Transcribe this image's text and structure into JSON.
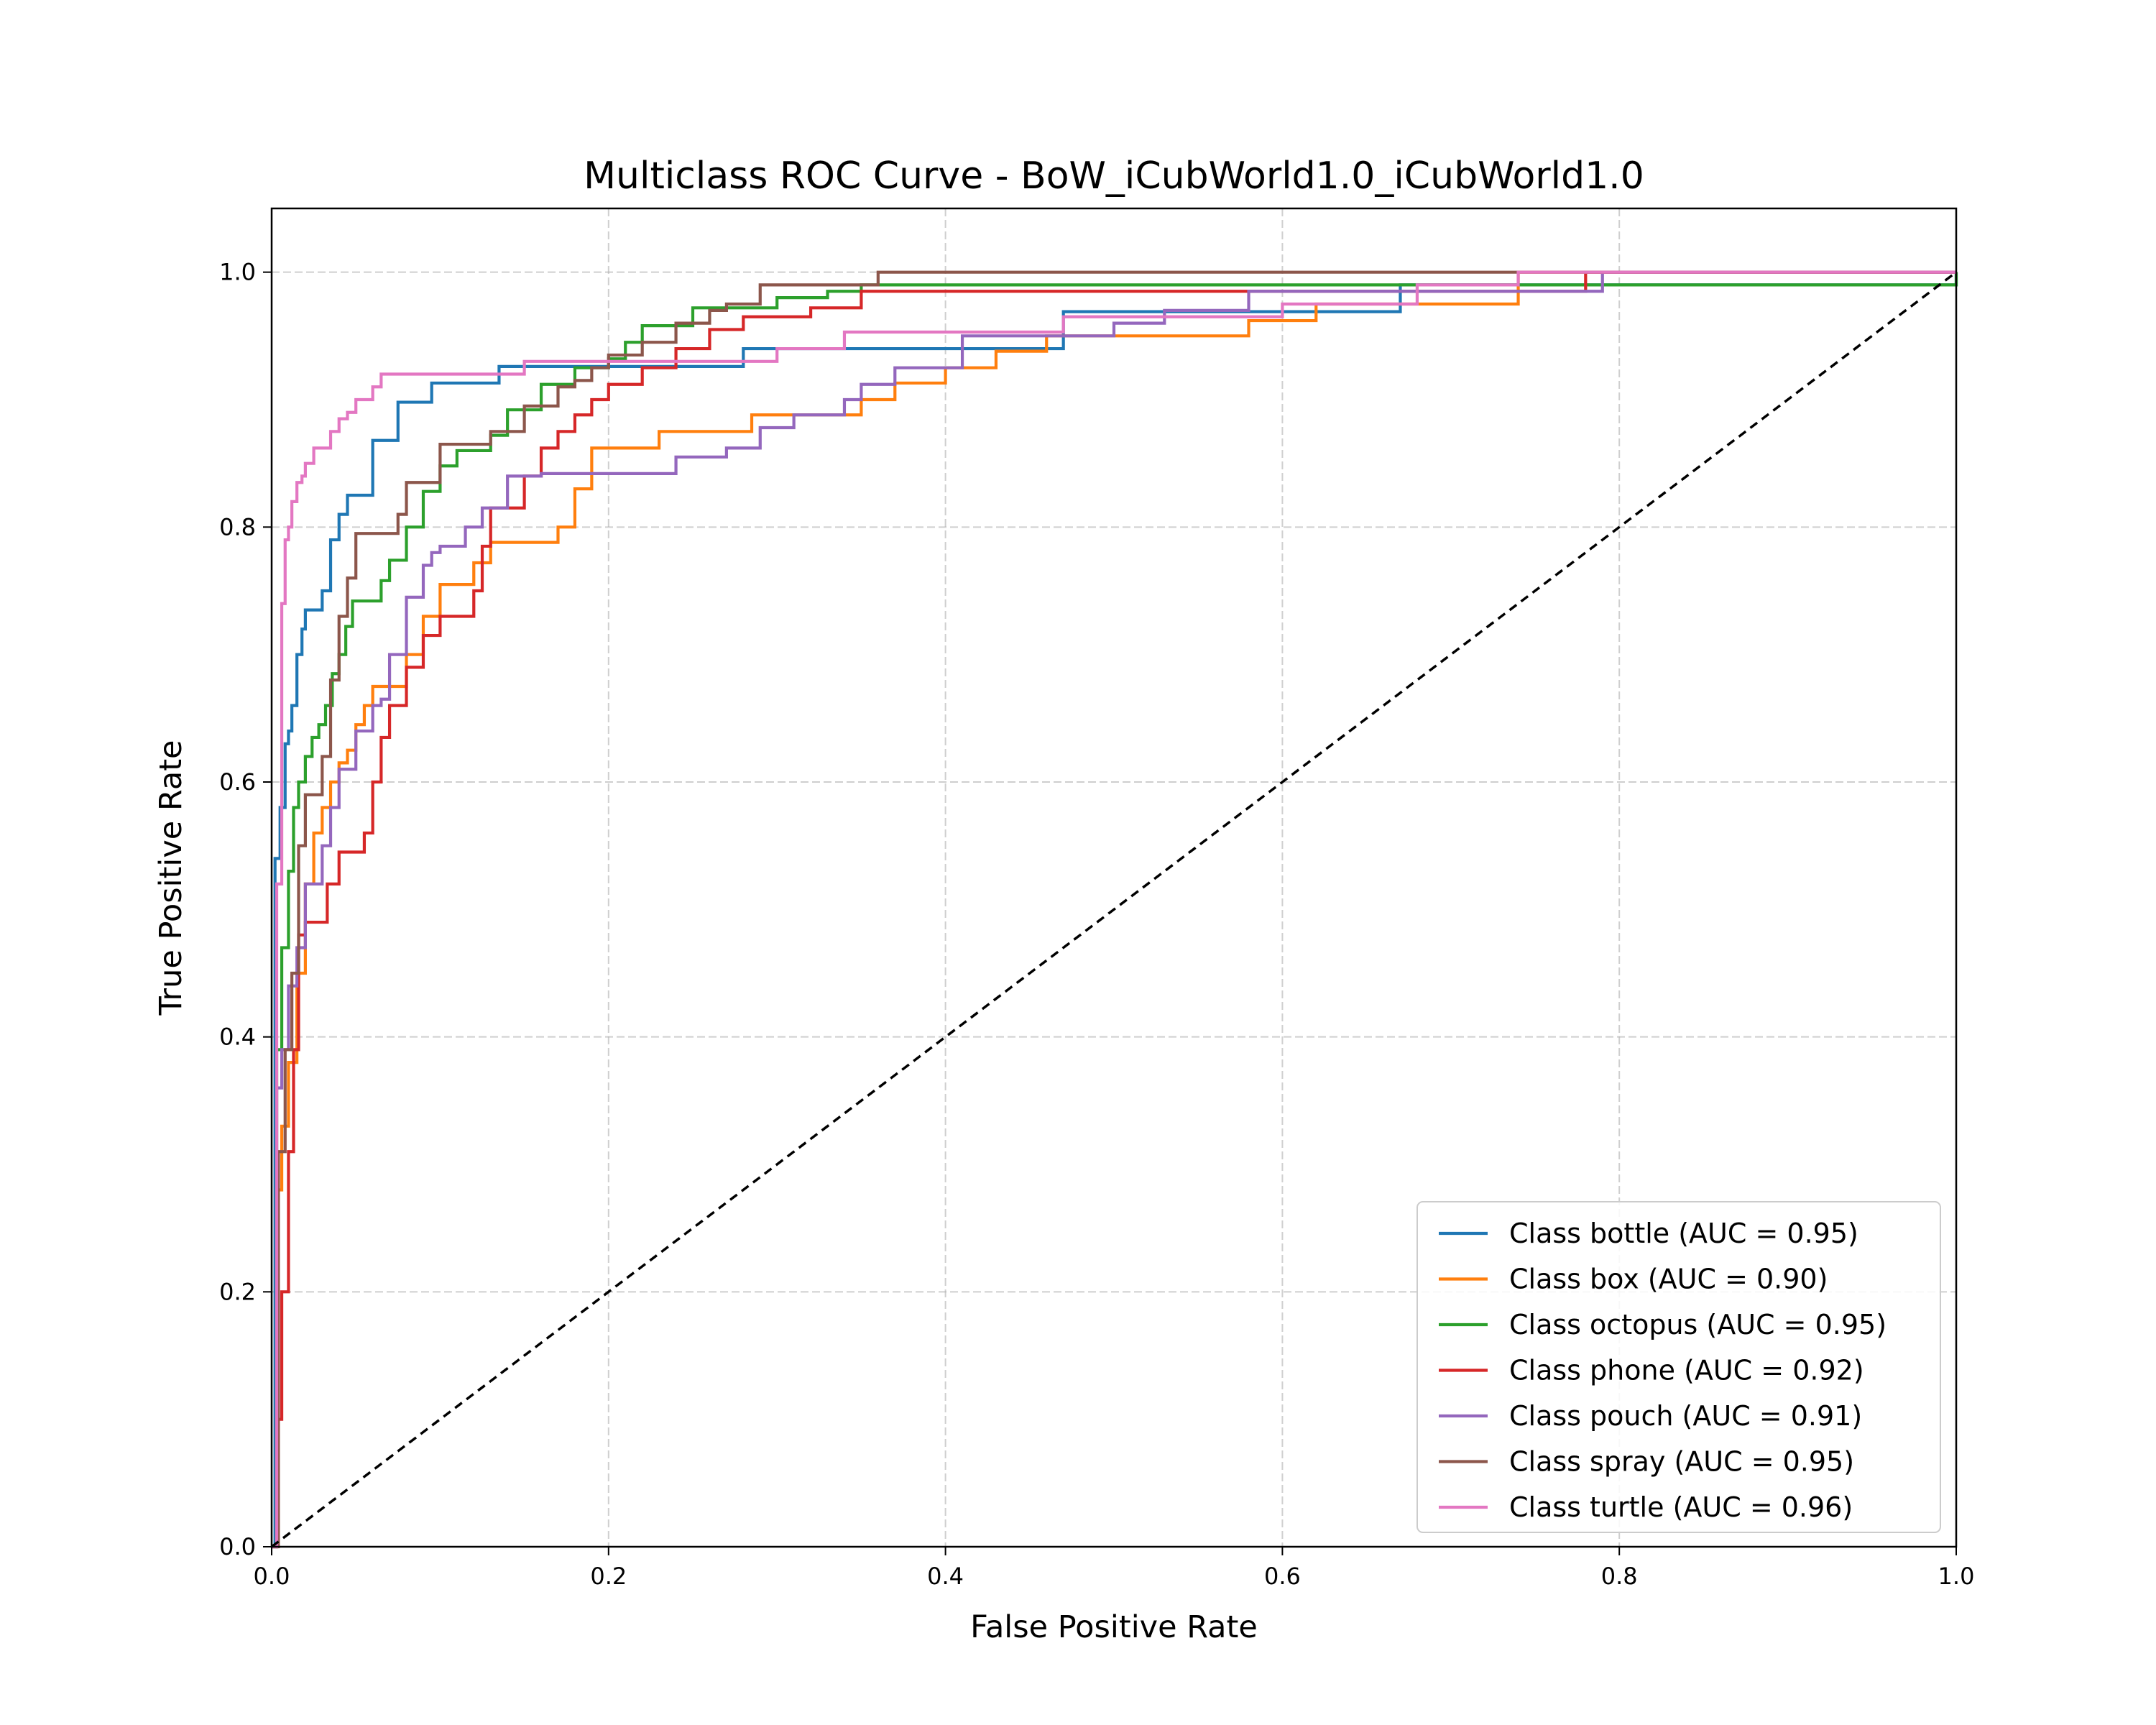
{
  "chart_data": {
    "type": "line",
    "title": "Multiclass ROC Curve - BoW_iCubWorld1.0_iCubWorld1.0",
    "xlabel": "False Positive Rate",
    "ylabel": "True Positive Rate",
    "xlim": [
      0.0,
      1.0
    ],
    "ylim": [
      0.0,
      1.05
    ],
    "xticks": [
      "0.0",
      "0.2",
      "0.4",
      "0.6",
      "0.8",
      "1.0"
    ],
    "yticks": [
      "0.0",
      "0.2",
      "0.4",
      "0.6",
      "0.8",
      "1.0"
    ],
    "grid": true,
    "legend_position": "lower-right",
    "diagonal": {
      "x": [
        0,
        1
      ],
      "y": [
        0,
        1
      ],
      "color": "#000000",
      "style": "dashed"
    },
    "series": [
      {
        "name": "Class bottle (AUC = 0.95)",
        "color": "#1f77b4",
        "x": [
          0,
          0.002,
          0.005,
          0.008,
          0.01,
          0.012,
          0.015,
          0.018,
          0.02,
          0.025,
          0.03,
          0.035,
          0.04,
          0.045,
          0.05,
          0.06,
          0.075,
          0.095,
          0.135,
          0.155,
          0.28,
          0.42,
          0.47,
          0.67,
          1.0
        ],
        "y": [
          0,
          0.54,
          0.58,
          0.63,
          0.64,
          0.66,
          0.7,
          0.72,
          0.735,
          0.735,
          0.75,
          0.79,
          0.81,
          0.825,
          0.825,
          0.868,
          0.898,
          0.913,
          0.926,
          0.926,
          0.94,
          0.94,
          0.969,
          0.99,
          1.0
        ]
      },
      {
        "name": "Class box (AUC = 0.90)",
        "color": "#ff7f0e",
        "x": [
          0,
          0.003,
          0.006,
          0.01,
          0.015,
          0.02,
          0.025,
          0.03,
          0.035,
          0.04,
          0.045,
          0.05,
          0.055,
          0.06,
          0.07,
          0.08,
          0.09,
          0.1,
          0.12,
          0.13,
          0.15,
          0.17,
          0.18,
          0.19,
          0.23,
          0.285,
          0.33,
          0.35,
          0.37,
          0.4,
          0.43,
          0.46,
          0.5,
          0.58,
          0.62,
          0.68,
          0.74,
          1.0
        ],
        "y": [
          0,
          0.28,
          0.33,
          0.38,
          0.45,
          0.52,
          0.56,
          0.58,
          0.6,
          0.615,
          0.625,
          0.645,
          0.66,
          0.675,
          0.675,
          0.7,
          0.73,
          0.755,
          0.772,
          0.788,
          0.788,
          0.8,
          0.83,
          0.862,
          0.875,
          0.888,
          0.888,
          0.9,
          0.913,
          0.925,
          0.938,
          0.95,
          0.95,
          0.962,
          0.975,
          0.975,
          1.0,
          1.0
        ]
      },
      {
        "name": "Class octopus (AUC = 0.95)",
        "color": "#2ca02c",
        "x": [
          0,
          0.003,
          0.006,
          0.01,
          0.013,
          0.016,
          0.02,
          0.024,
          0.028,
          0.032,
          0.036,
          0.04,
          0.044,
          0.048,
          0.055,
          0.065,
          0.07,
          0.08,
          0.09,
          0.1,
          0.11,
          0.12,
          0.13,
          0.14,
          0.15,
          0.16,
          0.18,
          0.2,
          0.21,
          0.22,
          0.23,
          0.25,
          0.28,
          0.3,
          0.33,
          0.35,
          0.51,
          1.0
        ],
        "y": [
          0,
          0.39,
          0.47,
          0.53,
          0.58,
          0.6,
          0.62,
          0.635,
          0.645,
          0.66,
          0.685,
          0.7,
          0.722,
          0.742,
          0.742,
          0.758,
          0.774,
          0.8,
          0.828,
          0.848,
          0.86,
          0.86,
          0.872,
          0.892,
          0.892,
          0.912,
          0.925,
          0.932,
          0.945,
          0.958,
          0.958,
          0.972,
          0.972,
          0.98,
          0.985,
          0.99,
          0.99,
          1.0
        ]
      },
      {
        "name": "Class phone (AUC = 0.92)",
        "color": "#d62728",
        "x": [
          0,
          0.003,
          0.006,
          0.01,
          0.013,
          0.016,
          0.02,
          0.025,
          0.033,
          0.04,
          0.045,
          0.055,
          0.06,
          0.065,
          0.07,
          0.08,
          0.09,
          0.1,
          0.12,
          0.125,
          0.13,
          0.15,
          0.16,
          0.17,
          0.18,
          0.19,
          0.2,
          0.22,
          0.24,
          0.26,
          0.28,
          0.32,
          0.35,
          0.56,
          0.78,
          1.0
        ],
        "y": [
          0,
          0.1,
          0.2,
          0.31,
          0.39,
          0.48,
          0.49,
          0.49,
          0.52,
          0.545,
          0.545,
          0.56,
          0.6,
          0.635,
          0.66,
          0.69,
          0.715,
          0.73,
          0.75,
          0.785,
          0.815,
          0.84,
          0.862,
          0.875,
          0.888,
          0.9,
          0.912,
          0.925,
          0.94,
          0.955,
          0.965,
          0.972,
          0.985,
          0.985,
          1.0,
          1.0
        ]
      },
      {
        "name": "Class pouch (AUC = 0.91)",
        "color": "#9467bd",
        "x": [
          0,
          0.003,
          0.006,
          0.01,
          0.015,
          0.02,
          0.025,
          0.03,
          0.035,
          0.04,
          0.045,
          0.05,
          0.06,
          0.065,
          0.07,
          0.08,
          0.09,
          0.095,
          0.1,
          0.115,
          0.125,
          0.14,
          0.16,
          0.24,
          0.27,
          0.29,
          0.31,
          0.34,
          0.35,
          0.37,
          0.41,
          0.5,
          0.53,
          0.58,
          0.79,
          1.0
        ],
        "y": [
          0,
          0.36,
          0.39,
          0.44,
          0.47,
          0.52,
          0.52,
          0.55,
          0.58,
          0.61,
          0.61,
          0.64,
          0.66,
          0.665,
          0.7,
          0.745,
          0.77,
          0.78,
          0.785,
          0.8,
          0.815,
          0.84,
          0.842,
          0.855,
          0.862,
          0.878,
          0.888,
          0.9,
          0.912,
          0.925,
          0.95,
          0.96,
          0.97,
          0.985,
          1.0,
          1.0
        ]
      },
      {
        "name": "Class spray (AUC = 0.95)",
        "color": "#8c564b",
        "x": [
          0,
          0.004,
          0.008,
          0.012,
          0.016,
          0.02,
          0.025,
          0.03,
          0.035,
          0.04,
          0.045,
          0.05,
          0.075,
          0.08,
          0.085,
          0.1,
          0.12,
          0.13,
          0.14,
          0.15,
          0.17,
          0.18,
          0.19,
          0.2,
          0.22,
          0.24,
          0.26,
          0.27,
          0.29,
          0.36,
          0.72,
          1.0
        ],
        "y": [
          0,
          0.31,
          0.39,
          0.45,
          0.55,
          0.59,
          0.59,
          0.62,
          0.68,
          0.73,
          0.76,
          0.795,
          0.81,
          0.835,
          0.835,
          0.865,
          0.865,
          0.875,
          0.875,
          0.895,
          0.91,
          0.915,
          0.925,
          0.935,
          0.945,
          0.96,
          0.97,
          0.975,
          0.99,
          1.0,
          1.0,
          1.0
        ]
      },
      {
        "name": "Class turtle (AUC = 0.96)",
        "color": "#e377c2",
        "x": [
          0,
          0.003,
          0.006,
          0.008,
          0.01,
          0.012,
          0.015,
          0.018,
          0.02,
          0.022,
          0.025,
          0.035,
          0.04,
          0.045,
          0.05,
          0.055,
          0.06,
          0.065,
          0.07,
          0.1,
          0.15,
          0.3,
          0.34,
          0.47,
          0.53,
          0.6,
          0.68,
          0.74,
          1.0
        ],
        "y": [
          0,
          0.52,
          0.74,
          0.79,
          0.8,
          0.82,
          0.835,
          0.84,
          0.85,
          0.85,
          0.862,
          0.875,
          0.885,
          0.89,
          0.9,
          0.9,
          0.91,
          0.92,
          0.92,
          0.92,
          0.93,
          0.94,
          0.953,
          0.965,
          0.965,
          0.975,
          0.99,
          1.0,
          1.0
        ]
      }
    ]
  }
}
